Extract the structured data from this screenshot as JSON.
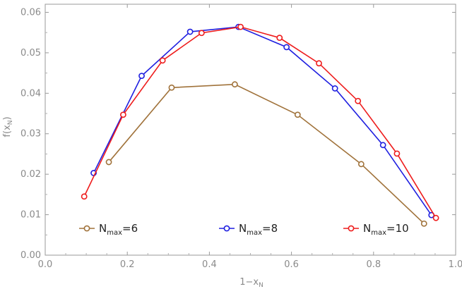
{
  "chart_data": {
    "type": "line",
    "title": "",
    "xlabel": {
      "main": "1−x",
      "sub": "N"
    },
    "ylabel": {
      "pre": "f(x",
      "sub": "N",
      "post": ")"
    },
    "xlim": [
      0.0,
      1.0
    ],
    "ylim": [
      0.0,
      0.062
    ],
    "xticks": [
      "0.0",
      "0.2",
      "0.4",
      "0.6",
      "0.8",
      "1.0"
    ],
    "yticks": [
      "0.00",
      "0.01",
      "0.02",
      "0.03",
      "0.04",
      "0.05",
      "0.06"
    ],
    "grid": false,
    "legend_position": "bottom",
    "series": [
      {
        "name": "Nmax=6",
        "legend": {
          "main": "N",
          "sub": "max",
          "post": "=6"
        },
        "color": "#a0723a",
        "x": [
          0.155,
          0.308,
          0.462,
          0.615,
          0.77,
          0.923
        ],
        "y": [
          0.023,
          0.0414,
          0.0422,
          0.0347,
          0.0225,
          0.0078
        ]
      },
      {
        "name": "Nmax=8",
        "legend": {
          "main": "N",
          "sub": "max",
          "post": "=8"
        },
        "color": "#1f1fe0",
        "x": [
          0.118,
          0.235,
          0.353,
          0.471,
          0.588,
          0.706,
          0.823,
          0.941
        ],
        "y": [
          0.0203,
          0.0443,
          0.0552,
          0.0564,
          0.0514,
          0.0412,
          0.0272,
          0.0099
        ]
      },
      {
        "name": "Nmax=10",
        "legend": {
          "main": "N",
          "sub": "max",
          "post": "=10"
        },
        "color": "#ee1c1c",
        "x": [
          0.095,
          0.19,
          0.286,
          0.381,
          0.476,
          0.571,
          0.667,
          0.762,
          0.857,
          0.952
        ],
        "y": [
          0.0145,
          0.0347,
          0.0481,
          0.0549,
          0.0564,
          0.0537,
          0.0474,
          0.0381,
          0.0251,
          0.0092
        ]
      }
    ]
  }
}
